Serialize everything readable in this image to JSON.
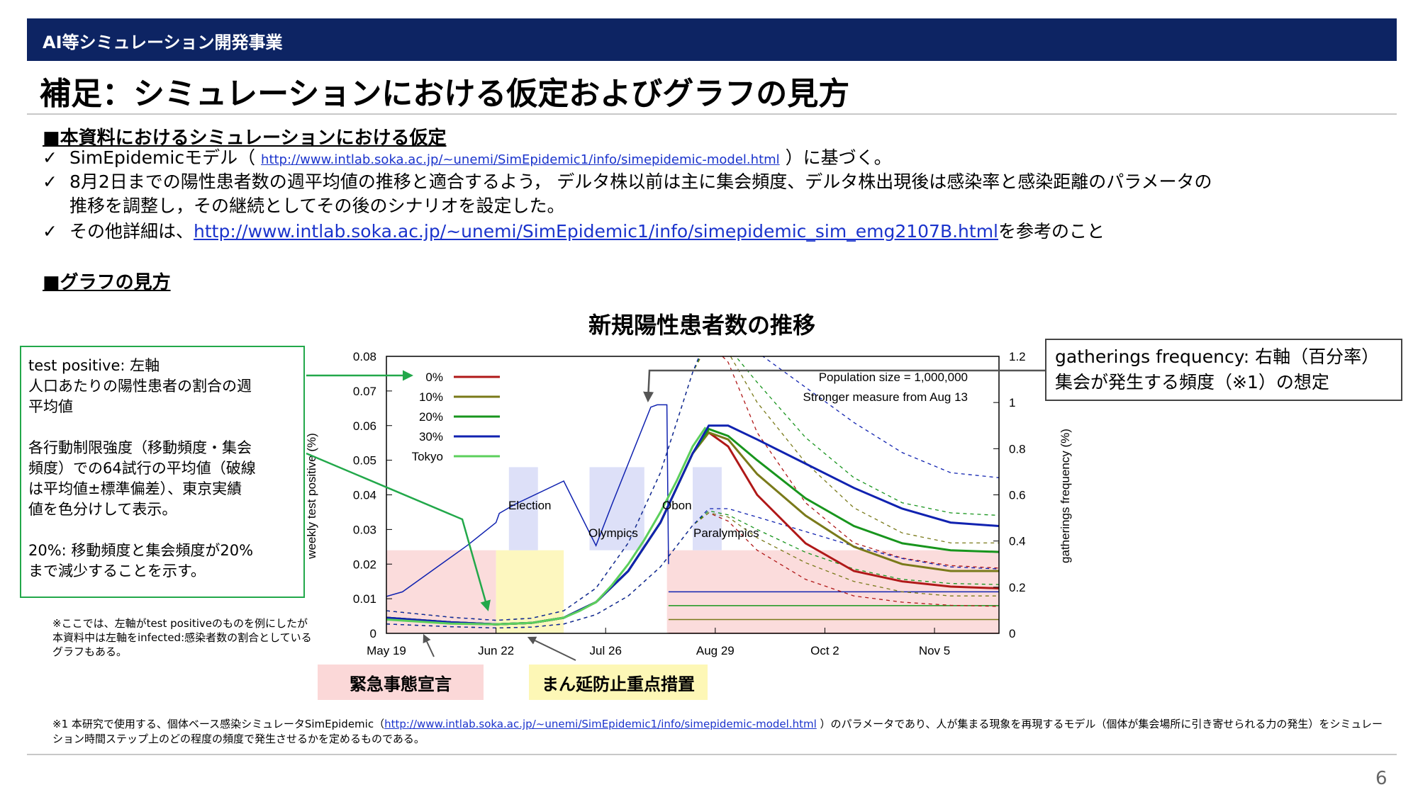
{
  "header": {
    "org": "AI等シミュレーション開発事業"
  },
  "title": "補足：シミュレーションにおける仮定およびグラフの見方",
  "section1": {
    "heading": "■本資料におけるシミュレーションにおける仮定",
    "check_mark": "✓",
    "b1_pre": "SimEpidemicモデル（ ",
    "b1_link": "http://www.intlab.soka.ac.jp/~unemi/SimEpidemic1/info/simepidemic-model.html",
    "b1_post": " ）に基づく。",
    "b2_line1": "8月2日までの陽性患者数の週平均値の推移と適合するよう，  デルタ株以前は主に集会頻度、デルタ株出現後は感染率と感染距離のパラメータの",
    "b2_line2": "推移を調整し，その継続としてその後のシナリオを設定した。",
    "b3_pre": "その他詳細は、",
    "b3_link": "http://www.intlab.soka.ac.jp/~unemi/SimEpidemic1/info/simepidemic_sim_emg2107B.html",
    "b3_post": "を参考のこと"
  },
  "section2": {
    "heading": "■グラフの見方"
  },
  "chart_data": {
    "type": "line",
    "title": "新規陽性患者数の推移",
    "ylabel": "weekly test positive (%)",
    "y2label": "gatherings frequency (%)",
    "ylim": [
      0,
      0.08
    ],
    "y2lim": [
      0,
      1.2
    ],
    "y_ticks": [
      "0.08",
      "0.07",
      "0.06",
      "0.05",
      "0.04",
      "0.03",
      "0.02",
      "0.01",
      "0"
    ],
    "y2_ticks": [
      "1.2",
      "1",
      "0.8",
      "0.6",
      "0.4",
      "0.2",
      "0"
    ],
    "x_ticks": [
      "May 19",
      "Jun 22",
      "Jul 26",
      "Aug 29",
      "Oct 2",
      "Nov 5"
    ],
    "x_days": [
      0,
      34,
      68,
      102,
      136,
      170
    ],
    "x_range_days": [
      0,
      190
    ],
    "annotations": {
      "population": "Population size = 1,000,000",
      "measure": "Stronger measure from Aug 13",
      "election": "Election",
      "olympics": "Olympics",
      "obon": "Obon",
      "paralympics": "Paralympics"
    },
    "legend_position": "top-left",
    "series": [
      {
        "name": "0%",
        "color": "#b01818",
        "x": [
          0,
          20,
          34,
          45,
          55,
          65,
          75,
          85,
          90,
          95,
          100,
          106,
          115,
          130,
          145,
          160,
          175,
          190
        ],
        "y": [
          0.0045,
          0.0032,
          0.0026,
          0.003,
          0.0045,
          0.009,
          0.018,
          0.032,
          0.042,
          0.052,
          0.058,
          0.054,
          0.04,
          0.026,
          0.018,
          0.015,
          0.0135,
          0.013
        ]
      },
      {
        "name": "10%",
        "color": "#7a7a1a",
        "x": [
          0,
          20,
          34,
          45,
          55,
          65,
          75,
          85,
          90,
          95,
          100,
          106,
          115,
          130,
          145,
          160,
          175,
          190
        ],
        "y": [
          0.0045,
          0.0032,
          0.0026,
          0.003,
          0.0045,
          0.009,
          0.018,
          0.032,
          0.042,
          0.052,
          0.058,
          0.056,
          0.046,
          0.034,
          0.025,
          0.02,
          0.018,
          0.018
        ]
      },
      {
        "name": "20%",
        "color": "#18951d",
        "x": [
          0,
          20,
          34,
          45,
          55,
          65,
          75,
          85,
          90,
          95,
          100,
          106,
          115,
          130,
          145,
          160,
          175,
          190
        ],
        "y": [
          0.0045,
          0.0032,
          0.0026,
          0.003,
          0.0045,
          0.009,
          0.018,
          0.032,
          0.042,
          0.052,
          0.059,
          0.057,
          0.05,
          0.039,
          0.031,
          0.026,
          0.024,
          0.0235
        ]
      },
      {
        "name": "30%",
        "color": "#1022b0",
        "x": [
          0,
          20,
          34,
          45,
          55,
          65,
          75,
          85,
          90,
          95,
          100,
          106,
          115,
          130,
          145,
          160,
          175,
          190
        ],
        "y": [
          0.0045,
          0.0032,
          0.0026,
          0.003,
          0.0045,
          0.009,
          0.018,
          0.032,
          0.042,
          0.052,
          0.06,
          0.06,
          0.056,
          0.049,
          0.042,
          0.036,
          0.032,
          0.031
        ]
      },
      {
        "name": "Tokyo",
        "color": "#5ccf5c",
        "x": [
          0,
          20,
          34,
          45,
          55,
          60,
          65,
          70,
          75,
          80,
          85,
          90,
          95,
          99
        ],
        "y": [
          0.004,
          0.0028,
          0.0026,
          0.003,
          0.0045,
          0.0065,
          0.009,
          0.014,
          0.02,
          0.027,
          0.035,
          0.044,
          0.054,
          0.0595
        ]
      }
    ],
    "gathering_lines": [
      {
        "name": "0%",
        "color": "#b01818",
        "level": 0.0
      },
      {
        "name": "10%",
        "color": "#7a7a1a",
        "level": 0.06
      },
      {
        "name": "20%",
        "color": "#18951d",
        "level": 0.12
      },
      {
        "name": "30%",
        "color": "#1022b0",
        "level": 0.18
      }
    ],
    "baseline_gathering": {
      "color": "#1022b0",
      "x": [
        0,
        5,
        25,
        34,
        35,
        40,
        55,
        65,
        70,
        82,
        84,
        87,
        87.5
      ],
      "y": [
        0.16,
        0.18,
        0.38,
        0.48,
        0.52,
        0.56,
        0.66,
        0.38,
        0.56,
        0.98,
        0.99,
        0.99,
        0.3
      ]
    },
    "shaded_regions": {
      "emergency_red": [
        [
          0,
          34
        ],
        [
          87,
          190
        ]
      ],
      "semi_yellow": [
        [
          34,
          55
        ]
      ],
      "events_blue": [
        [
          38,
          47
        ],
        [
          63,
          80
        ],
        [
          95,
          104
        ]
      ]
    }
  },
  "left_box": {
    "l1": "test positive: 左軸",
    "l2": "人口あたりの陽性患者の割合の週",
    "l3": "平均値",
    "l4": "各行動制限強度（移動頻度・集会",
    "l5": "頻度）での64試行の平均値（破線",
    "l6": "は平均値±標準偏差）、東京実績",
    "l7": "値を色分けして表示。",
    "l8": "20%: 移動頻度と集会頻度が20%",
    "l9": "まで減少することを示す。"
  },
  "right_box": {
    "l1": "gatherings frequency: 右軸（百分率）",
    "l2": "集会が発生する頻度（※1）の想定"
  },
  "note": {
    "l1": "※ここでは、左軸がtest positiveのものを例にしたが",
    "l2": "本資料中は左軸をinfected:感染者数の割合としている",
    "l3": "グラフもある。"
  },
  "tags": {
    "emergency": "緊急事態宣言",
    "semi": "まん延防止重点措置"
  },
  "footnote": {
    "pre": "※1 本研究で使用する、個体ベース感染シミュレータSimEpidemic（",
    "link": "http://www.intlab.soka.ac.jp/~unemi/SimEpidemic1/info/simepidemic-model.html",
    "post": " ）のパラメータであり、人が集まる現象を再現するモデル（個体が集会場所に引き寄せられる力の発生）をシミュレーション時間ステップ上のどの程度の頻度で発生させるかを定めるものである。"
  },
  "page_number": "6"
}
